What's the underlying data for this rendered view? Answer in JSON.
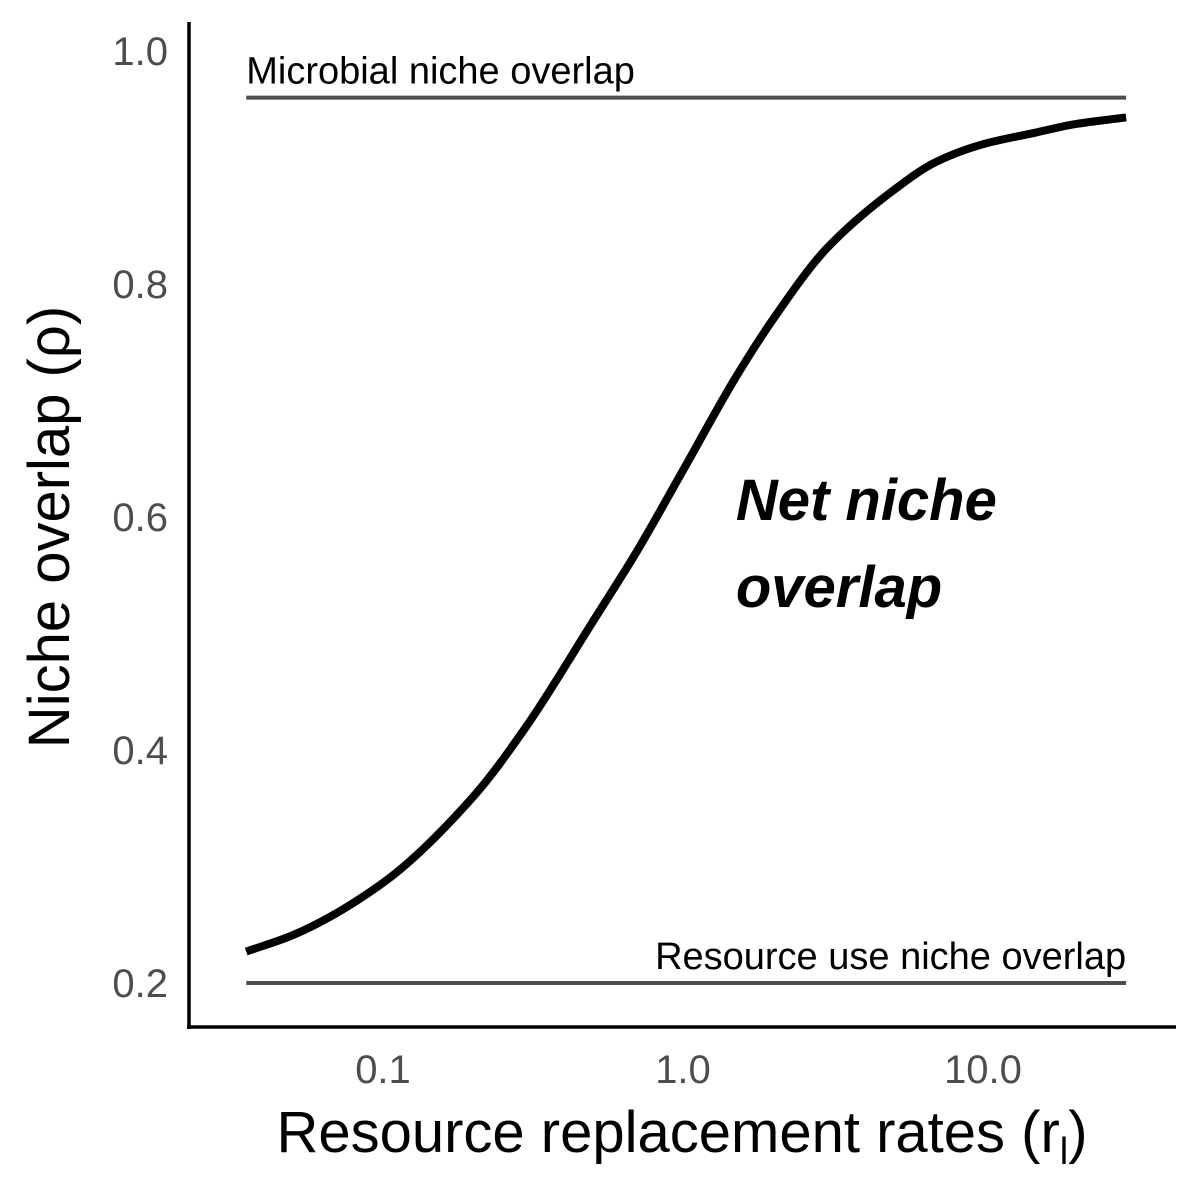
{
  "chart_data": {
    "type": "line",
    "xlabel": "Resource replacement rates (r",
    "xlabel_subscript": "l",
    "xlabel_close": ")",
    "ylabel": "Niche overlap (ρ)",
    "x_scale": "log10",
    "xlim": [
      0.032,
      31
    ],
    "ylim": [
      0.165,
      1.02
    ],
    "x_ticks": [
      0.1,
      1.0,
      10.0
    ],
    "x_tick_labels": [
      "0.1",
      "1.0",
      "10.0"
    ],
    "y_ticks": [
      0.2,
      0.4,
      0.6,
      0.8,
      1.0
    ],
    "y_tick_labels": [
      "0.2",
      "0.4",
      "0.6",
      "0.8",
      "1.0"
    ],
    "grid": false,
    "curve": {
      "x": [
        0.035,
        0.05,
        0.1,
        0.2,
        0.3,
        0.5,
        0.7,
        1.0,
        1.5,
        2.0,
        3.0,
        5.0,
        7.0,
        10.0,
        15.0,
        20.0,
        30.0
      ],
      "y": [
        0.227,
        0.241,
        0.286,
        0.36,
        0.42,
        0.51,
        0.57,
        0.64,
        0.72,
        0.77,
        0.83,
        0.88,
        0.905,
        0.92,
        0.93,
        0.937,
        0.943
      ]
    },
    "reference_lines": [
      {
        "label": "Microbial niche overlap",
        "y": 0.96,
        "x_start": 0.035,
        "x_end": 30.0,
        "label_anchor": "start"
      },
      {
        "label": "Resource use niche overlap",
        "y": 0.2,
        "x_start": 0.035,
        "x_end": 30.0,
        "label_anchor": "end"
      }
    ],
    "annotation": {
      "lines": [
        "Net niche",
        "overlap"
      ],
      "x": 1.5,
      "y": 0.6
    }
  }
}
